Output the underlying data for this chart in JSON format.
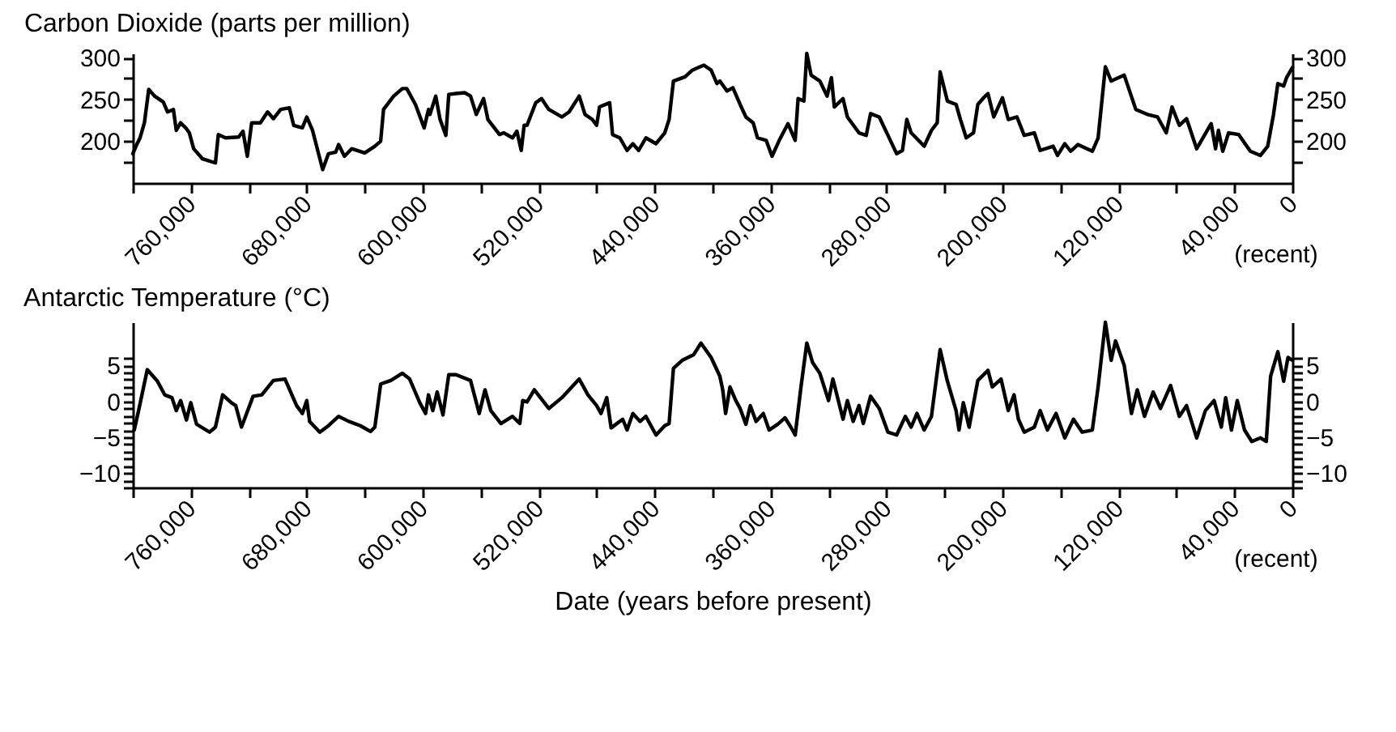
{
  "chart_data": [
    {
      "type": "line",
      "title": "Carbon Dioxide (parts per million)",
      "x": [
        800000,
        797000,
        795000,
        792000,
        789000,
        785000,
        779000,
        776000,
        772000,
        770000,
        767000,
        763000,
        761000,
        758000,
        752000,
        743000,
        741000,
        736000,
        727000,
        724000,
        721000,
        718000,
        712000,
        707000,
        703000,
        698000,
        692000,
        689000,
        683000,
        680000,
        676000,
        669000,
        665000,
        660000,
        658000,
        654000,
        649000,
        640000,
        633000,
        629000,
        627000,
        620000,
        614000,
        611000,
        605000,
        599000,
        596000,
        595000,
        591000,
        588000,
        584000,
        582000,
        577000,
        571000,
        567000,
        563000,
        558000,
        555000,
        547000,
        544000,
        538000,
        535000,
        532000,
        530000,
        528000,
        522000,
        518000,
        513000,
        504000,
        499000,
        492000,
        488000,
        483000,
        480000,
        478000,
        471000,
        469000,
        464000,
        459000,
        455000,
        451000,
        446000,
        439000,
        433000,
        430000,
        427000,
        419000,
        414000,
        410000,
        406000,
        401000,
        397000,
        395000,
        390000,
        386000,
        381000,
        377000,
        372000,
        369000,
        363000,
        359000,
        354000,
        348000,
        343000,
        341000,
        337000,
        335000,
        332000,
        326000,
        321000,
        318000,
        316000,
        310000,
        307000,
        299000,
        294000,
        291000,
        285000,
        279000,
        273000,
        269000,
        266000,
        263000,
        254000,
        249000,
        245000,
        243000,
        238000,
        232000,
        229000,
        225000,
        220000,
        217000,
        213000,
        210000,
        206000,
        200000,
        196000,
        190000,
        185000,
        178000,
        174000,
        165000,
        162000,
        157000,
        153000,
        148000,
        138000,
        134000,
        129000,
        125000,
        116000,
        108000,
        100000,
        93000,
        87000,
        83000,
        78000,
        73000,
        66000,
        56000,
        53000,
        51000,
        48000,
        44000,
        37000,
        29000,
        22000,
        17000,
        13000,
        10000,
        6000,
        4000,
        0
      ],
      "series": [
        {
          "color": "#000000",
          "values": [
            185,
            197,
            204,
            222,
            262,
            254,
            247,
            235,
            238,
            213,
            222,
            215,
            210,
            191,
            179,
            174,
            208,
            204,
            205,
            212,
            182,
            222,
            222,
            235,
            227,
            238,
            240,
            219,
            216,
            229,
            213,
            166,
            185,
            187,
            196,
            182,
            191,
            186,
            194,
            200,
            238,
            254,
            263,
            263,
            244,
            216,
            238,
            232,
            254,
            226,
            207,
            256,
            257,
            258,
            254,
            232,
            251,
            226,
            208,
            210,
            204,
            212,
            189,
            219,
            219,
            246,
            251,
            238,
            229,
            235,
            254,
            232,
            226,
            219,
            241,
            246,
            208,
            204,
            189,
            197,
            189,
            204,
            197,
            210,
            226,
            272,
            277,
            285,
            288,
            291,
            285,
            269,
            272,
            260,
            264,
            244,
            229,
            222,
            204,
            201,
            182,
            201,
            221,
            201,
            251,
            248,
            305,
            279,
            272,
            254,
            276,
            241,
            251,
            229,
            210,
            207,
            233,
            229,
            207,
            185,
            189,
            226,
            210,
            194,
            213,
            222,
            283,
            248,
            244,
            226,
            204,
            210,
            244,
            252,
            257,
            229,
            252,
            226,
            229,
            207,
            210,
            189,
            194,
            183,
            197,
            188,
            196,
            188,
            204,
            289,
            272,
            279,
            238,
            232,
            229,
            210,
            241,
            219,
            227,
            191,
            221,
            191,
            213,
            188,
            210,
            208,
            188,
            183,
            194,
            232,
            269,
            266,
            276,
            288
          ]
        }
      ],
      "xlim": [
        800000,
        0
      ],
      "xticks": [
        {
          "value": 800000,
          "label": null
        },
        {
          "value": 760000,
          "label": "760,000"
        },
        {
          "value": 720000,
          "label": null
        },
        {
          "value": 680000,
          "label": "680,000"
        },
        {
          "value": 640000,
          "label": null
        },
        {
          "value": 600000,
          "label": "600,000"
        },
        {
          "value": 560000,
          "label": null
        },
        {
          "value": 520000,
          "label": "520,000"
        },
        {
          "value": 480000,
          "label": null
        },
        {
          "value": 440000,
          "label": "440,000"
        },
        {
          "value": 400000,
          "label": null
        },
        {
          "value": 360000,
          "label": "360,000"
        },
        {
          "value": 320000,
          "label": null
        },
        {
          "value": 280000,
          "label": "280,000"
        },
        {
          "value": 240000,
          "label": null
        },
        {
          "value": 200000,
          "label": "200,000"
        },
        {
          "value": 160000,
          "label": null
        },
        {
          "value": 120000,
          "label": "120,000"
        },
        {
          "value": 80000,
          "label": null
        },
        {
          "value": 40000,
          "label": "40,000"
        },
        0
      ],
      "ylim": [
        150,
        305
      ],
      "yticks": [
        {
          "value": 175,
          "label": null
        },
        200,
        {
          "value": 225,
          "label": null
        },
        250,
        {
          "value": 275,
          "label": null
        },
        300
      ],
      "y2lim": [
        150,
        305
      ],
      "y2ticks": [
        {
          "value": 175,
          "label": null
        },
        200,
        {
          "value": 225,
          "label": null
        },
        250,
        {
          "value": 275,
          "label": null
        },
        300
      ],
      "annotations": [
        "(recent)"
      ]
    },
    {
      "type": "line",
      "title": "Antarctic Temperature (°C)",
      "xlabel": "Date (years before present)",
      "x": [
        799000,
        796000,
        790000,
        783000,
        778000,
        773000,
        770000,
        767000,
        763000,
        760000,
        756000,
        747000,
        743000,
        738000,
        732000,
        729000,
        725000,
        717000,
        711000,
        703000,
        695000,
        687000,
        683000,
        680000,
        678000,
        671000,
        665000,
        658000,
        651000,
        643000,
        636000,
        633000,
        629000,
        622000,
        614000,
        609000,
        602000,
        598000,
        596000,
        593000,
        590000,
        586000,
        582000,
        577000,
        567000,
        561000,
        557000,
        553000,
        546000,
        538000,
        533000,
        531000,
        528000,
        523000,
        513000,
        504000,
        492000,
        486000,
        480000,
        477000,
        473000,
        470000,
        462000,
        459000,
        455000,
        450000,
        446000,
        439000,
        433000,
        430000,
        427000,
        421000,
        413000,
        408000,
        401000,
        395000,
        393000,
        391000,
        388000,
        384000,
        381000,
        377000,
        374000,
        370000,
        365000,
        361000,
        355000,
        350000,
        346000,
        343000,
        339000,
        335000,
        331000,
        326000,
        320000,
        317000,
        310000,
        307000,
        303000,
        299000,
        296000,
        291000,
        285000,
        279000,
        273000,
        267000,
        263000,
        259000,
        254000,
        249000,
        243000,
        238000,
        232000,
        230000,
        227000,
        223000,
        217000,
        210000,
        207000,
        201000,
        196000,
        192000,
        189000,
        185000,
        178000,
        174000,
        169000,
        163000,
        157000,
        151000,
        145000,
        138000,
        134000,
        129000,
        125000,
        122000,
        116000,
        111000,
        107000,
        102000,
        96000,
        91000,
        84000,
        78000,
        73000,
        66000,
        60000,
        54000,
        49000,
        46000,
        42000,
        38000,
        33000,
        28000,
        22000,
        18000,
        15000,
        10000,
        6000,
        3000,
        0
      ],
      "series": [
        {
          "color": "#000000",
          "values": [
            -4.0,
            -1.3,
            4.4,
            2.8,
            0.9,
            0.5,
            -1.3,
            0.1,
            -2.6,
            -0.2,
            -3.2,
            -4.3,
            -3.6,
            0.9,
            -0.2,
            -0.6,
            -3.6,
            0.7,
            0.9,
            2.9,
            3.1,
            -0.6,
            -1.7,
            0.1,
            -2.8,
            -4.3,
            -3.4,
            -2.1,
            -2.8,
            -3.4,
            -4.2,
            -3.6,
            2.4,
            2.9,
            3.9,
            3.1,
            -0.2,
            -1.7,
            0.9,
            -1.3,
            1.3,
            -1.9,
            3.7,
            3.7,
            2.9,
            -1.7,
            1.6,
            -1.3,
            -3.1,
            -2.1,
            -3.1,
            0.1,
            -0.1,
            1.6,
            -1.0,
            0.5,
            3.1,
            0.9,
            -0.6,
            -1.7,
            0.5,
            -3.7,
            -2.5,
            -4.0,
            -1.7,
            -2.8,
            -2.1,
            -4.7,
            -3.4,
            -3.1,
            4.6,
            5.7,
            6.5,
            8.1,
            6.1,
            3.5,
            1.6,
            -1.7,
            2.0,
            0.1,
            -1.0,
            -3.2,
            -0.6,
            -2.8,
            -1.7,
            -4.0,
            -3.2,
            -2.3,
            -3.6,
            -4.7,
            2.0,
            8.1,
            5.4,
            3.9,
            0.1,
            3.1,
            -2.5,
            0.1,
            -2.8,
            -0.6,
            -3.1,
            0.7,
            -1.0,
            -4.3,
            -4.7,
            -2.1,
            -3.6,
            -1.7,
            -4.0,
            -2.1,
            7.2,
            2.8,
            -1.3,
            -4.0,
            -0.2,
            -3.6,
            2.9,
            4.3,
            2.0,
            3.1,
            -1.3,
            0.9,
            -2.5,
            -4.3,
            -3.6,
            -1.3,
            -4.0,
            -1.7,
            -5.1,
            -2.5,
            -4.3,
            -4.0,
            2.0,
            11.0,
            5.7,
            8.4,
            5.0,
            -1.7,
            1.6,
            -2.1,
            1.3,
            -1.0,
            2.2,
            -2.1,
            -0.6,
            -5.1,
            -1.3,
            0.1,
            -3.6,
            0.5,
            -4.0,
            0.1,
            -4.0,
            -5.6,
            -5.1,
            -5.6,
            3.5,
            6.9,
            2.8,
            6.1,
            5.7
          ]
        }
      ],
      "xlim": [
        800000,
        0
      ],
      "xticks": [
        {
          "value": 800000,
          "label": null
        },
        {
          "value": 760000,
          "label": "760,000"
        },
        {
          "value": 720000,
          "label": null
        },
        {
          "value": 680000,
          "label": "680,000"
        },
        {
          "value": 640000,
          "label": null
        },
        {
          "value": 600000,
          "label": "600,000"
        },
        {
          "value": 560000,
          "label": null
        },
        {
          "value": 520000,
          "label": "520,000"
        },
        {
          "value": 480000,
          "label": null
        },
        {
          "value": 440000,
          "label": "440,000"
        },
        {
          "value": 400000,
          "label": null
        },
        {
          "value": 360000,
          "label": "360,000"
        },
        {
          "value": 320000,
          "label": null
        },
        {
          "value": 280000,
          "label": "280,000"
        },
        {
          "value": 240000,
          "label": null
        },
        {
          "value": 200000,
          "label": "200,000"
        },
        {
          "value": 160000,
          "label": null
        },
        {
          "value": 120000,
          "label": "120,000"
        },
        {
          "value": 80000,
          "label": null
        },
        {
          "value": 40000,
          "label": "40,000"
        },
        0
      ],
      "ylim": [
        -12,
        11
      ],
      "yticks": [
        {
          "value": -12,
          "label": null
        },
        {
          "value": -11,
          "label": null
        },
        {
          "value": -10,
          "label": "−10"
        },
        {
          "value": -9,
          "label": null
        },
        {
          "value": -8,
          "label": null
        },
        {
          "value": -7,
          "label": null
        },
        {
          "value": -6,
          "label": null
        },
        {
          "value": -5,
          "label": "−5"
        },
        {
          "value": -4,
          "label": null
        },
        {
          "value": -3,
          "label": null
        },
        {
          "value": -2,
          "label": null
        },
        {
          "value": -1,
          "label": null
        },
        0,
        {
          "value": 1,
          "label": null
        },
        {
          "value": 2,
          "label": null
        },
        {
          "value": 3,
          "label": null
        },
        {
          "value": 4,
          "label": null
        },
        5,
        {
          "value": 6,
          "label": null
        }
      ],
      "y2lim": [
        -12,
        11
      ],
      "y2ticks": [
        {
          "value": -12,
          "label": null
        },
        {
          "value": -11,
          "label": null
        },
        {
          "value": -10,
          "label": "−10"
        },
        {
          "value": -9,
          "label": null
        },
        {
          "value": -8,
          "label": null
        },
        {
          "value": -7,
          "label": null
        },
        {
          "value": -6,
          "label": null
        },
        {
          "value": -5,
          "label": "−5"
        },
        {
          "value": -4,
          "label": null
        },
        {
          "value": -3,
          "label": null
        },
        {
          "value": -2,
          "label": null
        },
        {
          "value": -1,
          "label": null
        },
        0,
        {
          "value": 1,
          "label": null
        },
        {
          "value": 2,
          "label": null
        },
        {
          "value": 3,
          "label": null
        },
        {
          "value": 4,
          "label": null
        },
        5,
        {
          "value": 6,
          "label": null
        }
      ],
      "annotations": [
        "(recent)"
      ]
    }
  ]
}
